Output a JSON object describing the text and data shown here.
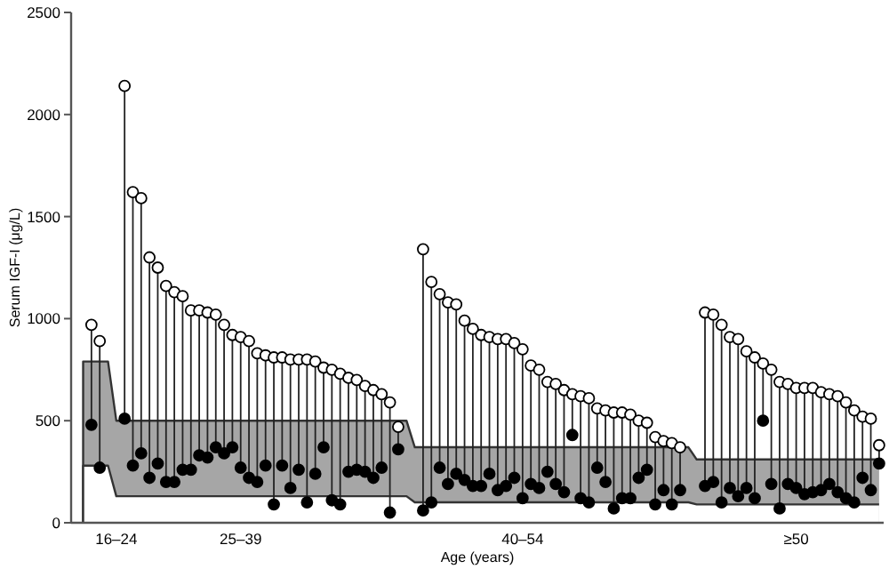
{
  "chart_data": {
    "type": "scatter",
    "xlabel": "Age (years)",
    "ylabel": "Serum IGF-I (μg/L)",
    "categories": [
      null,
      null,
      null,
      null,
      null,
      "16–24",
      null,
      null,
      null,
      null,
      null,
      null,
      null,
      null,
      null,
      null,
      null,
      null,
      null,
      null,
      "25–39",
      null,
      null,
      null,
      null,
      null,
      null,
      null,
      null,
      null,
      null,
      null,
      null,
      null,
      null,
      null,
      null,
      null,
      null,
      null,
      null,
      null,
      null,
      null,
      null,
      null,
      null,
      null,
      null,
      null,
      null,
      null,
      null,
      null,
      "40–54",
      null,
      null,
      null,
      null,
      null,
      null,
      null,
      null,
      null,
      null,
      null,
      null,
      null,
      null,
      null,
      null,
      null,
      null,
      null,
      null,
      null,
      null,
      null,
      null,
      null,
      null,
      null,
      null,
      null,
      null,
      null,
      null,
      "≥50",
      null,
      null,
      null,
      null,
      null,
      null,
      null,
      null,
      null,
      null
    ],
    "ylim": [
      0,
      2500
    ],
    "yticks": [
      0,
      500,
      1000,
      1500,
      2000,
      2500
    ],
    "grid": false,
    "series": [
      {
        "type": "area",
        "color": "#a6a6a6",
        "values": [
          null,
          790,
          790,
          790,
          790,
          500,
          500,
          500,
          500,
          500,
          500,
          500,
          500,
          500,
          500,
          500,
          500,
          500,
          500,
          500,
          500,
          500,
          500,
          500,
          500,
          500,
          500,
          500,
          500,
          500,
          500,
          500,
          500,
          500,
          500,
          500,
          500,
          500,
          500,
          500,
          500,
          370,
          370,
          370,
          370,
          370,
          370,
          370,
          370,
          370,
          370,
          370,
          370,
          370,
          370,
          370,
          370,
          370,
          370,
          370,
          370,
          370,
          370,
          370,
          370,
          370,
          370,
          370,
          370,
          370,
          370,
          370,
          370,
          370,
          370,
          310,
          310,
          310,
          310,
          310,
          310,
          310,
          310,
          310,
          310,
          310,
          310,
          310,
          310,
          310,
          310,
          310,
          310,
          310,
          310,
          310,
          310,
          310
        ]
      },
      {
        "type": "area",
        "color": "#ffffff",
        "values": [
          null,
          280,
          280,
          280,
          280,
          130,
          130,
          130,
          130,
          130,
          130,
          130,
          130,
          130,
          130,
          130,
          130,
          130,
          130,
          130,
          130,
          130,
          130,
          130,
          130,
          130,
          130,
          130,
          130,
          130,
          130,
          130,
          130,
          130,
          130,
          130,
          130,
          130,
          130,
          130,
          130,
          100,
          100,
          100,
          100,
          100,
          100,
          100,
          100,
          100,
          100,
          100,
          100,
          100,
          100,
          100,
          100,
          100,
          100,
          100,
          100,
          100,
          100,
          100,
          100,
          100,
          100,
          100,
          100,
          100,
          100,
          100,
          100,
          100,
          100,
          90,
          90,
          90,
          90,
          90,
          90,
          90,
          90,
          90,
          90,
          90,
          90,
          90,
          90,
          90,
          90,
          90,
          90,
          90,
          90,
          90,
          90,
          90
        ]
      },
      {
        "color": "#ffffff",
        "marker": "circle",
        "values": [
          null,
          null,
          970,
          890,
          null,
          null,
          2140,
          1620,
          1590,
          1300,
          1250,
          1160,
          1130,
          1110,
          1040,
          1040,
          1030,
          1020,
          970,
          920,
          910,
          890,
          830,
          820,
          810,
          810,
          800,
          800,
          800,
          790,
          760,
          750,
          730,
          710,
          700,
          670,
          650,
          630,
          590,
          470,
          null,
          null,
          1340,
          1180,
          1120,
          1080,
          1070,
          990,
          950,
          920,
          910,
          900,
          900,
          880,
          850,
          770,
          750,
          690,
          680,
          650,
          630,
          620,
          610,
          560,
          550,
          540,
          540,
          530,
          500,
          490,
          420,
          400,
          390,
          370,
          null,
          null,
          1030,
          1020,
          970,
          910,
          900,
          840,
          810,
          780,
          750,
          690,
          680,
          660,
          660,
          660,
          640,
          630,
          620,
          590,
          550,
          520,
          510,
          380
        ]
      },
      {
        "color": "#000000",
        "marker": "circle",
        "values": [
          null,
          null,
          480,
          270,
          null,
          null,
          510,
          280,
          340,
          220,
          290,
          200,
          200,
          260,
          260,
          330,
          320,
          370,
          340,
          370,
          270,
          220,
          200,
          280,
          90,
          280,
          170,
          260,
          100,
          240,
          370,
          110,
          90,
          250,
          260,
          250,
          220,
          270,
          50,
          360,
          null,
          null,
          60,
          100,
          270,
          190,
          240,
          210,
          180,
          180,
          240,
          160,
          180,
          220,
          120,
          190,
          170,
          250,
          190,
          150,
          430,
          120,
          100,
          270,
          200,
          70,
          120,
          120,
          220,
          260,
          90,
          160,
          90,
          160,
          null,
          null,
          180,
          200,
          100,
          170,
          130,
          170,
          120,
          500,
          190,
          70,
          190,
          170,
          140,
          150,
          160,
          190,
          150,
          120,
          100,
          220,
          160,
          290
        ]
      }
    ]
  }
}
